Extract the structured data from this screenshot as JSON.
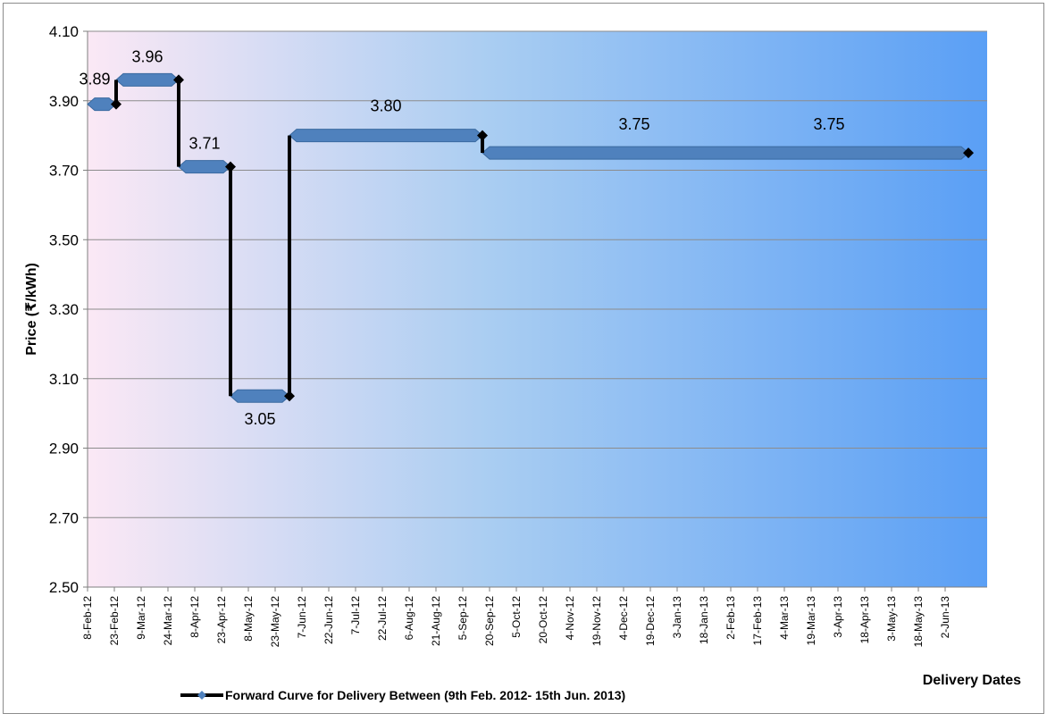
{
  "chart_data": {
    "type": "line",
    "title": "",
    "xlabel": "Delivery Dates",
    "ylabel": "Price (₹/kWh)",
    "ylim": [
      2.5,
      4.1
    ],
    "y_ticks": [
      "2.50",
      "2.70",
      "2.90",
      "3.10",
      "3.30",
      "3.50",
      "3.70",
      "3.90",
      "4.10"
    ],
    "x_ticks": [
      "8-Feb-12",
      "23-Feb-12",
      "9-Mar-12",
      "24-Mar-12",
      "8-Apr-12",
      "23-Apr-12",
      "8-May-12",
      "23-May-12",
      "7-Jun-12",
      "22-Jun-12",
      "7-Jul-12",
      "22-Jul-12",
      "6-Aug-12",
      "21-Aug-12",
      "5-Sep-12",
      "20-Sep-12",
      "5-Oct-12",
      "20-Oct-12",
      "4-Nov-12",
      "19-Nov-12",
      "4-Dec-12",
      "19-Dec-12",
      "3-Jan-13",
      "18-Jan-13",
      "2-Feb-13",
      "17-Feb-13",
      "4-Mar-13",
      "19-Mar-13",
      "3-Apr-13",
      "18-Apr-13",
      "3-May-13",
      "18-May-13",
      "2-Jun-13"
    ],
    "grid": true,
    "legend_position": "bottom",
    "series": [
      {
        "name": "Forward Curve for Delivery Between (9th Feb. 2012- 15th Jun. 2013)",
        "color": "#000000",
        "band_color": "#4f81bd",
        "segments": [
          {
            "start": "2012-02-08",
            "end": "2012-02-24",
            "value": 3.89,
            "label": "3.89"
          },
          {
            "start": "2012-02-24",
            "end": "2012-03-30",
            "value": 3.96,
            "label": "3.96"
          },
          {
            "start": "2012-03-30",
            "end": "2012-04-28",
            "value": 3.71,
            "label": "3.71"
          },
          {
            "start": "2012-04-28",
            "end": "2012-05-31",
            "value": 3.05,
            "label": "3.05"
          },
          {
            "start": "2012-05-31",
            "end": "2012-09-16",
            "value": 3.8,
            "label": "3.80"
          },
          {
            "start": "2012-09-16",
            "end": "2013-06-15",
            "value": 3.75,
            "label": "3.75"
          }
        ],
        "extra_labels": [
          {
            "date": "2013-03-29",
            "value": 3.75,
            "label": "3.75"
          }
        ]
      }
    ]
  }
}
